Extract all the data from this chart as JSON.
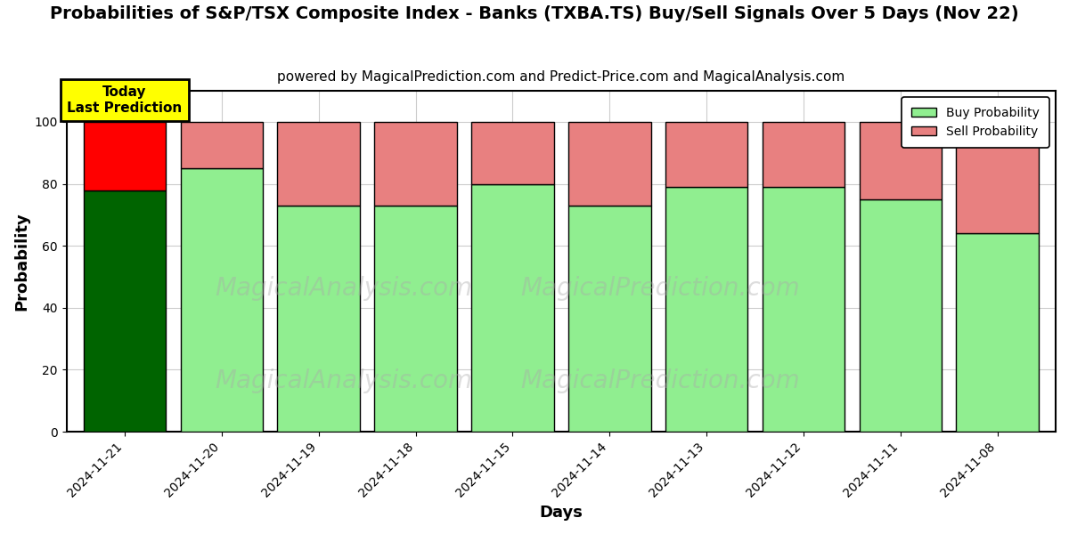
{
  "title": "Probabilities of S&P/TSX Composite Index - Banks (TXBA.TS) Buy/Sell Signals Over 5 Days (Nov 22)",
  "subtitle": "powered by MagicalPrediction.com and Predict-Price.com and MagicalAnalysis.com",
  "xlabel": "Days",
  "ylabel": "Probability",
  "categories": [
    "2024-11-21",
    "2024-11-20",
    "2024-11-19",
    "2024-11-18",
    "2024-11-15",
    "2024-11-14",
    "2024-11-13",
    "2024-11-12",
    "2024-11-11",
    "2024-11-08"
  ],
  "buy_values": [
    78,
    85,
    73,
    73,
    80,
    73,
    79,
    79,
    75,
    64
  ],
  "sell_values": [
    22,
    15,
    27,
    27,
    20,
    27,
    21,
    21,
    25,
    36
  ],
  "today_buy_color": "#006400",
  "today_sell_color": "#FF0000",
  "buy_color": "#90EE90",
  "sell_color": "#E88080",
  "bar_edge_color": "#000000",
  "today_annotation": "Today\nLast Prediction",
  "today_annotation_bg": "#FFFF00",
  "ylim": [
    0,
    110
  ],
  "yticks": [
    0,
    20,
    40,
    60,
    80,
    100
  ],
  "dashed_line_y": 110,
  "background_color": "#FFFFFF",
  "plot_bg_color": "#FFFFFF",
  "grid_color": "#CCCCCC",
  "title_fontsize": 14,
  "subtitle_fontsize": 11,
  "label_fontsize": 13,
  "tick_fontsize": 10,
  "bar_width": 0.85
}
